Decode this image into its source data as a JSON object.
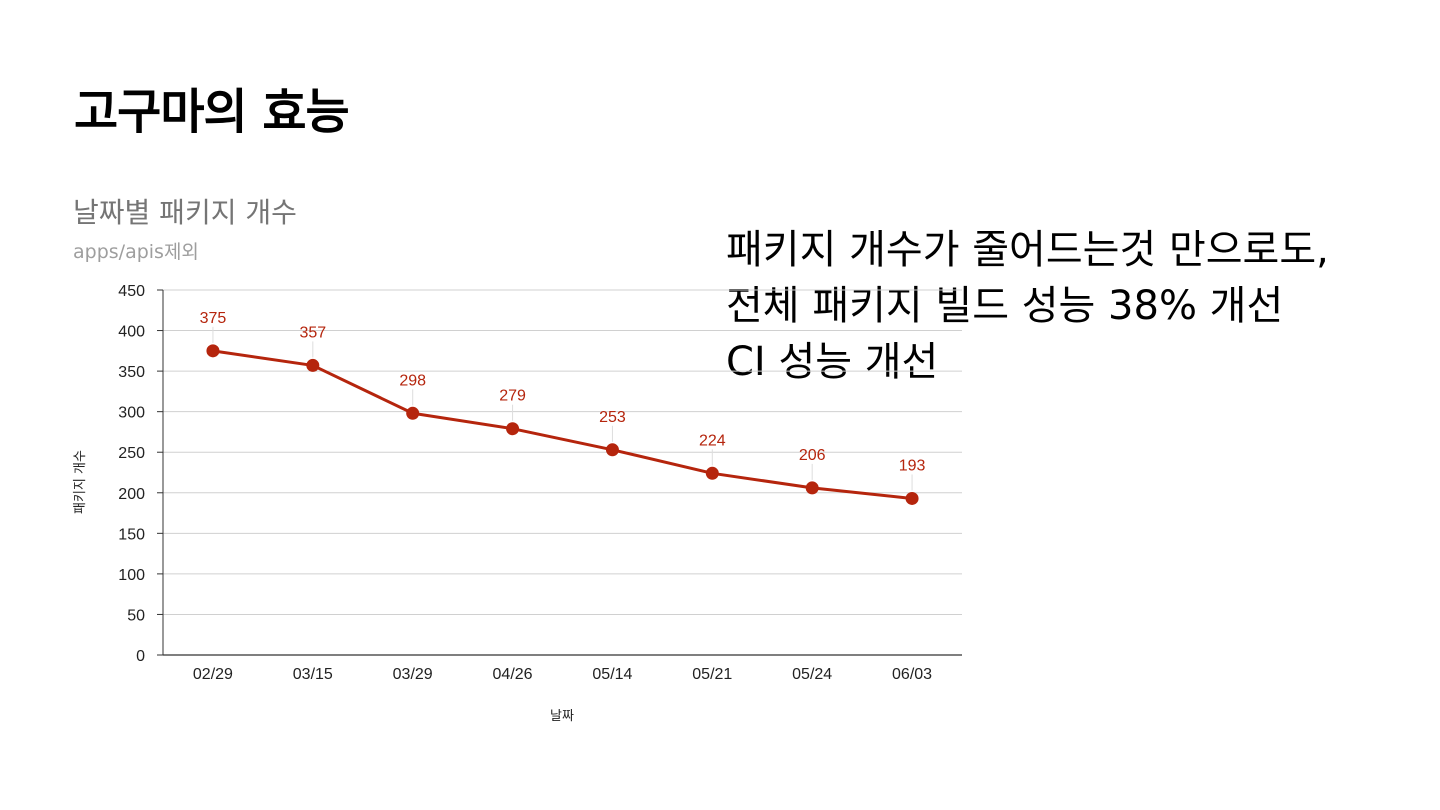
{
  "slide": {
    "title": "고구마의 효능"
  },
  "callout": {
    "lines": [
      "패키지 개수가 줄어드는것 만으로도,",
      "전체 패키지 빌드 성능 38% 개선",
      "CI 성능 개선"
    ]
  },
  "chart_data": {
    "type": "line",
    "title": "날짜별 패키지 개수",
    "subtitle": "apps/apis제외",
    "xlabel": "날짜",
    "ylabel": "패키지 개수",
    "categories": [
      "02/29",
      "03/15",
      "03/29",
      "04/26",
      "05/14",
      "05/21",
      "05/24",
      "06/03"
    ],
    "series": [
      {
        "values": [
          375,
          357,
          298,
          279,
          253,
          224,
          206,
          193
        ]
      }
    ],
    "ylim": [
      0,
      450
    ],
    "yticks": [
      0,
      50,
      100,
      150,
      200,
      250,
      300,
      350,
      400,
      450
    ],
    "grid": true,
    "data_labels": true,
    "color": "#b5250d"
  }
}
